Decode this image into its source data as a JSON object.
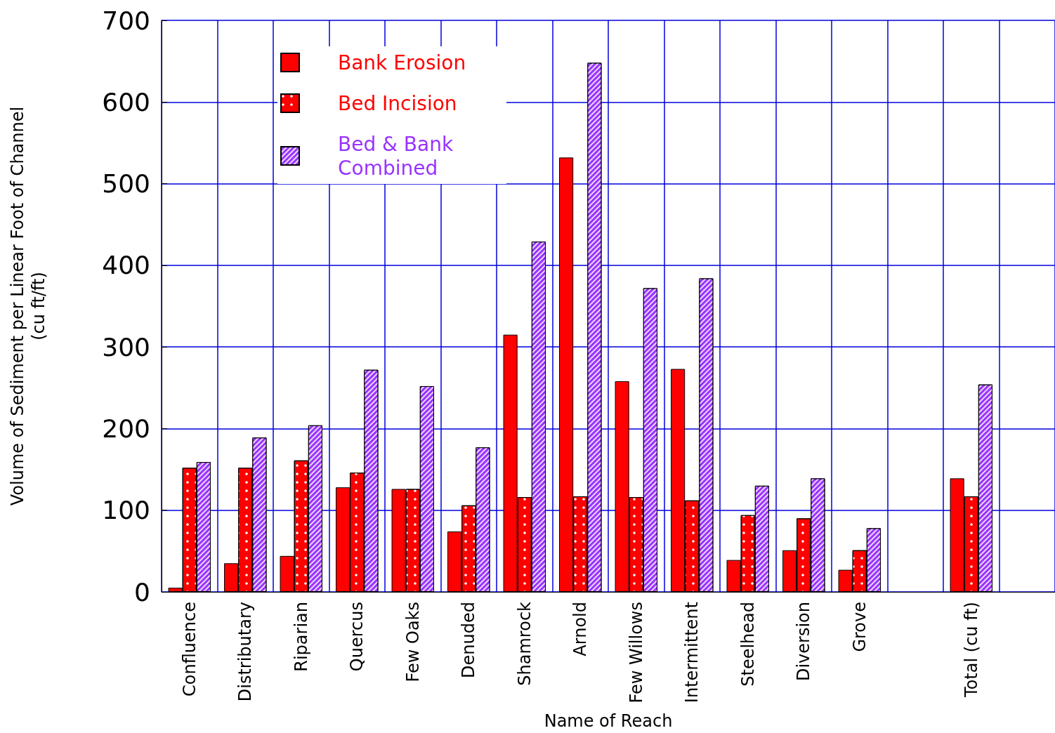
{
  "chart_data": {
    "type": "bar",
    "xlabel": "Name of Reach",
    "ylabel": "Volume of Sediment per Linear Foot of Channel\n(cu ft/ft)",
    "categories": [
      "Confluence",
      "Distributary",
      "Riparian",
      "Quercus",
      "Few Oaks",
      "Denuded",
      "Shamrock",
      "Arnold",
      "Few Willows",
      "Intermittent",
      "Steelhead",
      "Diversion",
      "Grove",
      null,
      "Total (cu ft)",
      null
    ],
    "series": [
      {
        "name": "Bank Erosion",
        "color": "#ff0000",
        "values": [
          5,
          35,
          44,
          128,
          126,
          74,
          315,
          532,
          258,
          273,
          39,
          51,
          27,
          null,
          139,
          null
        ]
      },
      {
        "name": "Bed Incision",
        "color": "#ff0000",
        "values": [
          152,
          152,
          161,
          146,
          126,
          106,
          116,
          117,
          116,
          112,
          94,
          90,
          51,
          null,
          117,
          null
        ]
      },
      {
        "name": "Bed & Bank Combined",
        "color": "#9933ff",
        "values": [
          159,
          189,
          204,
          272,
          252,
          177,
          429,
          648,
          372,
          384,
          130,
          139,
          78,
          null,
          254,
          null
        ]
      }
    ],
    "ylim": [
      0,
      700
    ],
    "yticks": [
      0,
      100,
      200,
      300,
      400,
      500,
      600,
      700
    ],
    "grid": true,
    "legend": "top left"
  }
}
